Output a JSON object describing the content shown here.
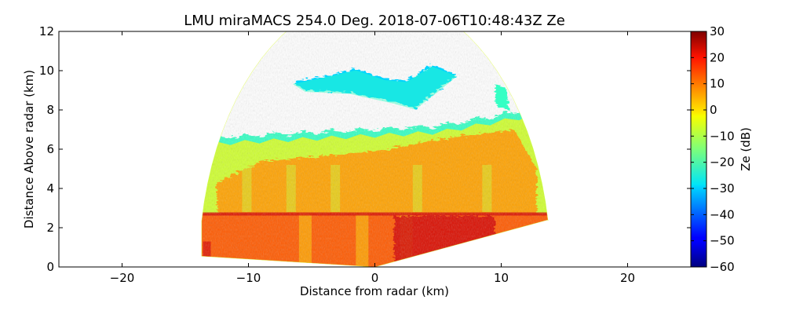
{
  "chart_data": {
    "type": "heatmap",
    "title": "LMU miraMACS 254.0 Deg. 2018-07-06T10:48:43Z  Ze",
    "xlabel": "Distance from radar (km)",
    "ylabel": "Distance Above radar  (km)",
    "xlim": [
      -25,
      25
    ],
    "ylim": [
      0,
      12
    ],
    "x_ticks": [
      -20,
      -10,
      0,
      10,
      20
    ],
    "x_tick_labels": [
      "−20",
      "−10",
      "0",
      "10",
      "20"
    ],
    "y_ticks": [
      0,
      2,
      4,
      6,
      8,
      10,
      12
    ],
    "y_tick_labels": [
      "0",
      "2",
      "4",
      "6",
      "8",
      "10",
      "12"
    ],
    "colorbar": {
      "label": "Ze (dB)",
      "range": [
        -60,
        30
      ],
      "colormap": "jet",
      "ticks": [
        30,
        20,
        10,
        0,
        -10,
        -20,
        -30,
        -40,
        -50,
        -60
      ],
      "tick_labels": [
        "30",
        "20",
        "10",
        "0",
        "−10",
        "−20",
        "−30",
        "−40",
        "−50",
        "−60"
      ]
    },
    "scan": {
      "azimuth_deg": 254.0,
      "max_range_km": 13.9,
      "left_edge_km": -13.7,
      "right_edge_km": 13.7,
      "cloud_top_left_km": 6.4,
      "cloud_top_center_km": 7.0,
      "cloud_top_right_km": 8.0,
      "melting_layer_km": 2.7,
      "upper_cloud": {
        "x_range_km": [
          -6.5,
          6.5
        ],
        "base_km": 8.1,
        "top_km": 10.3
      }
    },
    "colors": {
      "core": "#d40000",
      "rain": "#ff5a00",
      "snow": "#ffa200",
      "edge": "#cfff30",
      "top": "#36ffc4",
      "upper": "#00d4ff"
    }
  }
}
